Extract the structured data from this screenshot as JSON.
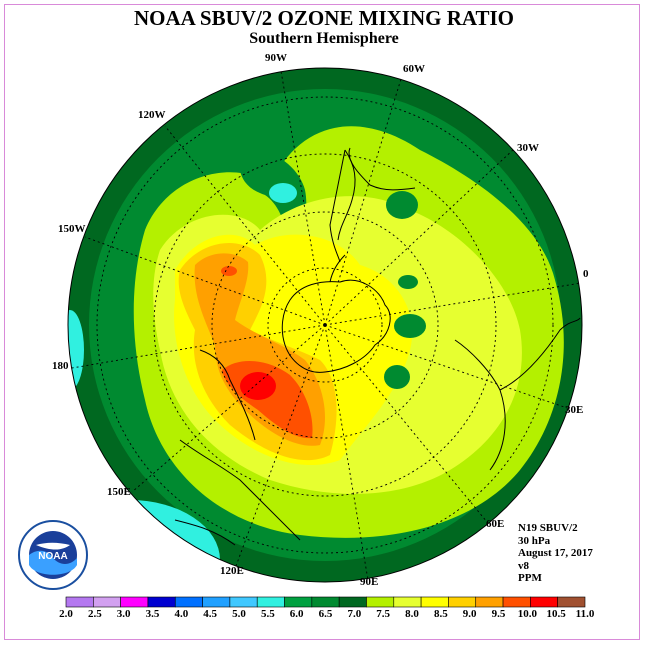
{
  "title": "NOAA SBUV/2 OZONE MIXING RATIO",
  "subtitle": "Southern Hemisphere",
  "longitude_labels": [
    "90W",
    "60W",
    "30W",
    "0",
    "30E",
    "60E",
    "90E",
    "120E",
    "150E",
    "180",
    "150W",
    "120W"
  ],
  "info": {
    "satellite": "N19 SBUV/2",
    "level": "30 hPa",
    "date": "August 17, 2017",
    "version": "v8",
    "units": "PPM"
  },
  "colorbar": {
    "labels": [
      "2.0",
      "2.5",
      "3.0",
      "3.5",
      "4.0",
      "4.5",
      "5.0",
      "5.5",
      "6.0",
      "6.5",
      "7.0",
      "7.5",
      "8.0",
      "8.5",
      "9.0",
      "9.5",
      "10.0",
      "10.5",
      "11.0"
    ],
    "colors": [
      "#b478f0",
      "#d2a0f0",
      "#ff00ff",
      "#0000d0",
      "#0070ff",
      "#20a0ff",
      "#40c8ff",
      "#30f0e0",
      "#00a040",
      "#008a30",
      "#006820",
      "#b4f000",
      "#e6ff30",
      "#ffff00",
      "#ffd000",
      "#ffa000",
      "#ff5000",
      "#ff0000",
      "#a05030"
    ]
  },
  "logo": {
    "text": "NOAA",
    "icon": "noaa-logo-icon"
  }
}
